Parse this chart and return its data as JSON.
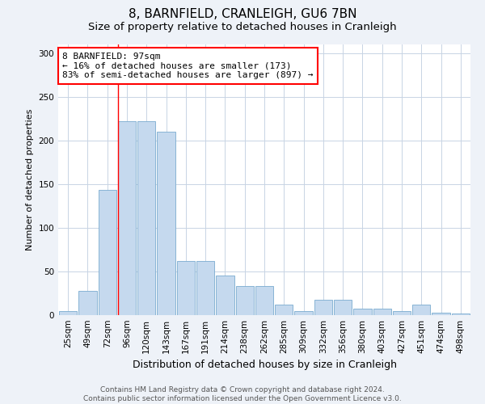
{
  "title1": "8, BARNFIELD, CRANLEIGH, GU6 7BN",
  "title2": "Size of property relative to detached houses in Cranleigh",
  "xlabel": "Distribution of detached houses by size in Cranleigh",
  "ylabel": "Number of detached properties",
  "categories": [
    "25sqm",
    "49sqm",
    "72sqm",
    "96sqm",
    "120sqm",
    "143sqm",
    "167sqm",
    "191sqm",
    "214sqm",
    "238sqm",
    "262sqm",
    "285sqm",
    "309sqm",
    "332sqm",
    "356sqm",
    "380sqm",
    "403sqm",
    "427sqm",
    "451sqm",
    "474sqm",
    "498sqm"
  ],
  "values": [
    5,
    28,
    143,
    222,
    222,
    210,
    62,
    62,
    45,
    33,
    33,
    12,
    5,
    18,
    18,
    7,
    7,
    5,
    12,
    3,
    2
  ],
  "bar_color": "#c5d9ee",
  "bar_edge_color": "#7aabcf",
  "redline_bin_index": 3,
  "annotation_line1": "8 BARNFIELD: 97sqm",
  "annotation_line2": "← 16% of detached houses are smaller (173)",
  "annotation_line3": "83% of semi-detached houses are larger (897) →",
  "annotation_box_color": "white",
  "annotation_box_edge_color": "red",
  "ylim": [
    0,
    310
  ],
  "yticks": [
    0,
    50,
    100,
    150,
    200,
    250,
    300
  ],
  "footer1": "Contains HM Land Registry data © Crown copyright and database right 2024.",
  "footer2": "Contains public sector information licensed under the Open Government Licence v3.0.",
  "bg_color": "#eef2f8",
  "plot_bg_color": "#ffffff",
  "grid_color": "#c8d4e4",
  "title1_fontsize": 11,
  "title2_fontsize": 9.5,
  "xlabel_fontsize": 9,
  "ylabel_fontsize": 8,
  "tick_fontsize": 7.5,
  "footer_fontsize": 6.5,
  "annotation_fontsize": 8
}
